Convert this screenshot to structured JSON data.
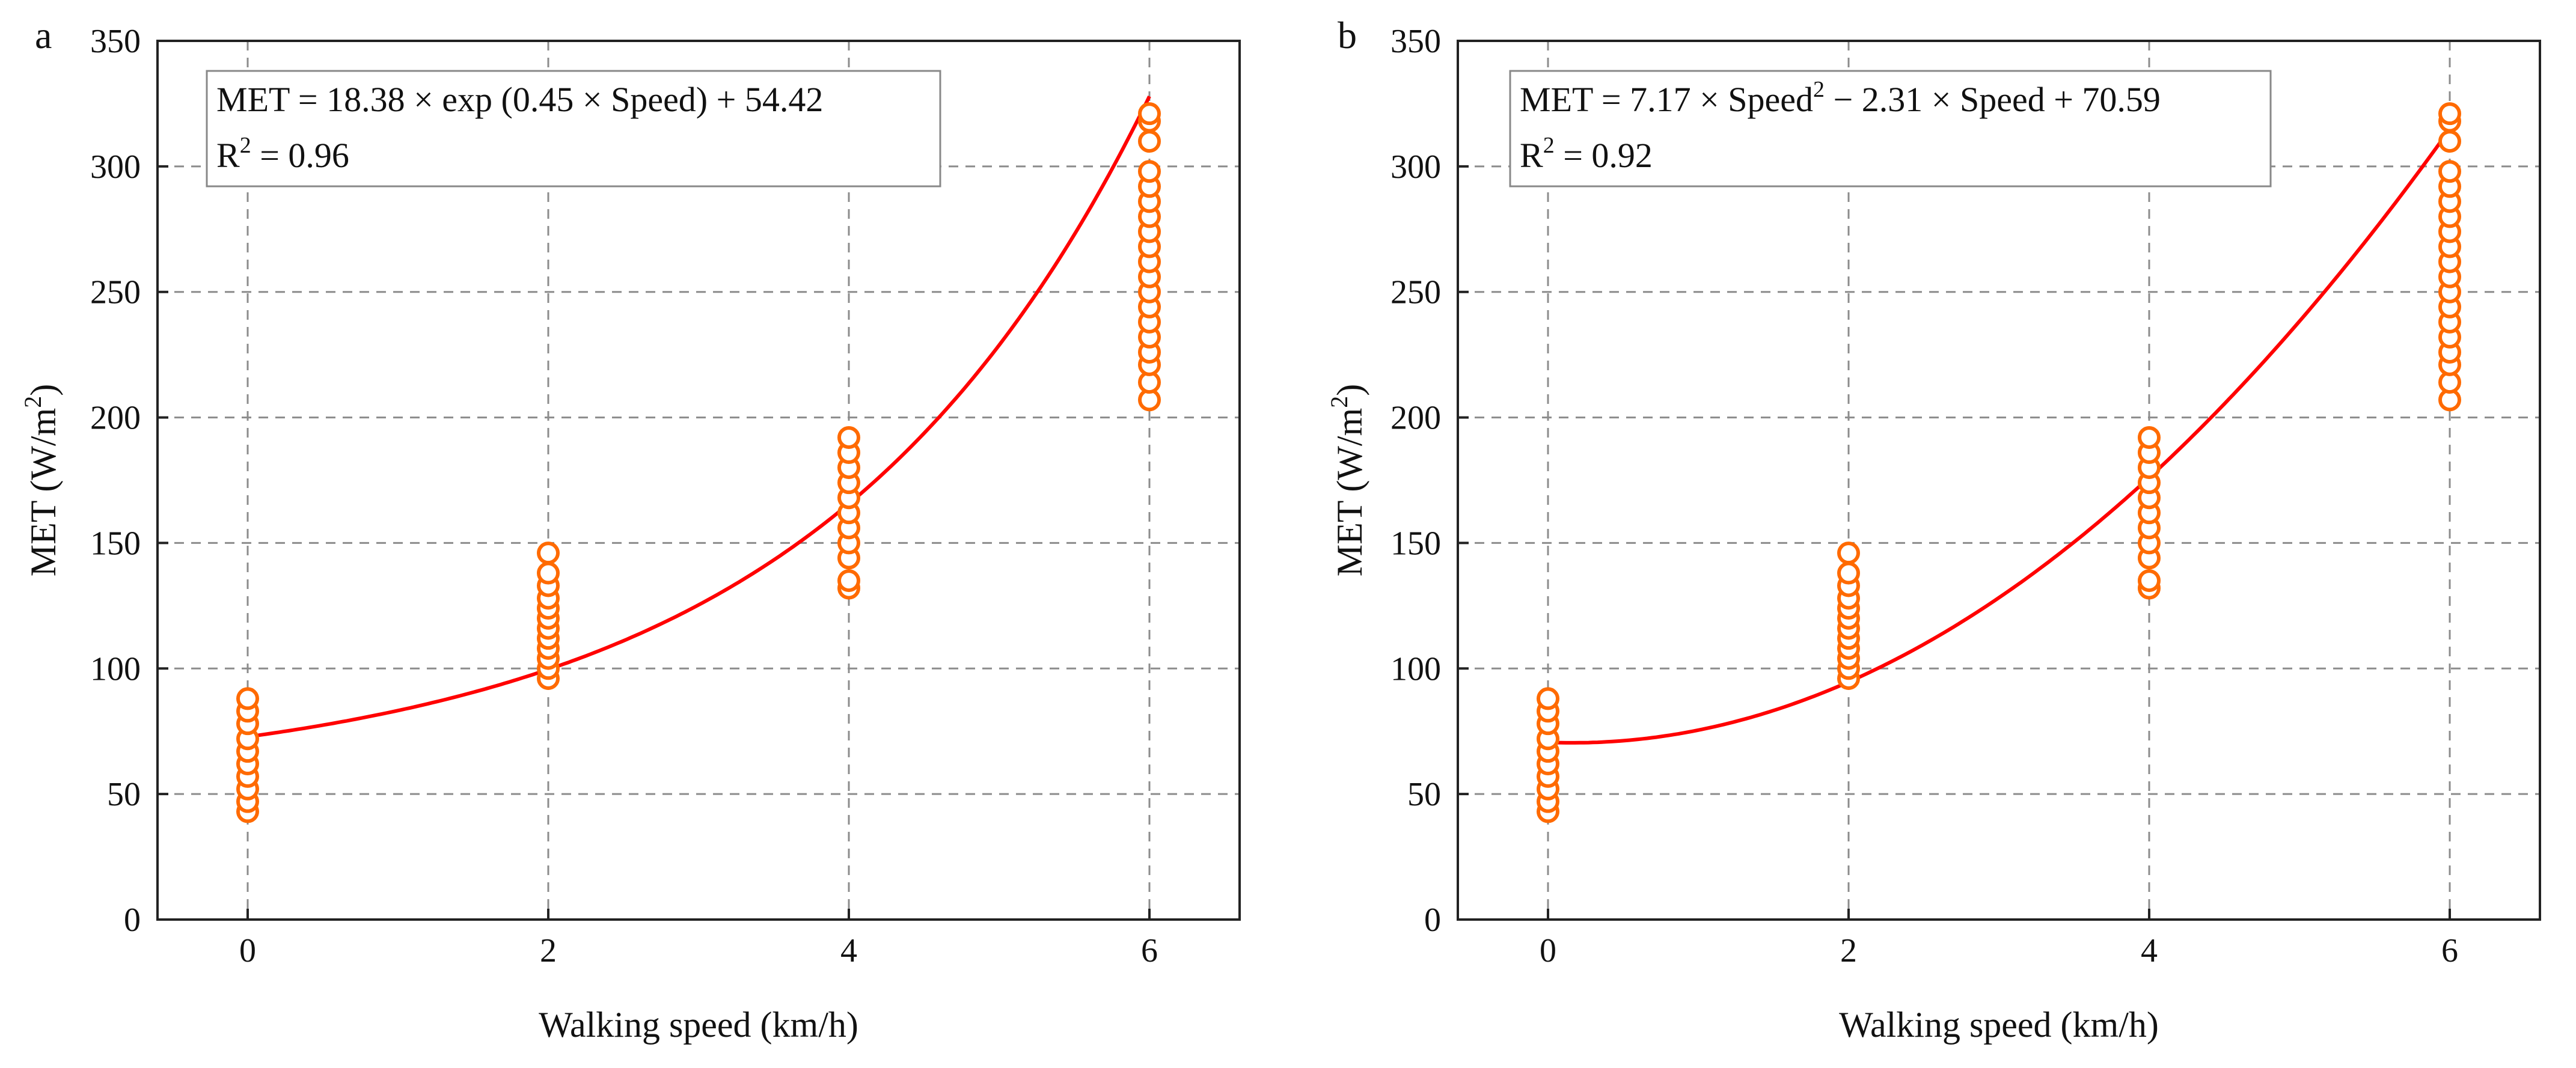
{
  "chart_data": [
    {
      "type": "scatter",
      "panel_label": "a",
      "xlabel": "Walking speed (km/h)",
      "ylabel": "MET (W/m",
      "ylabel_sup": "2",
      "ylabel_close": ")",
      "xlim": [
        -0.6,
        6.6
      ],
      "ylim": [
        0,
        350
      ],
      "xticks": [
        0,
        2,
        4,
        6
      ],
      "yticks": [
        0,
        50,
        100,
        150,
        200,
        250,
        300,
        350
      ],
      "grid": true,
      "marker_color": "#ff6a00",
      "fit_color": "#ff0000",
      "equation": "MET = 18.38 × exp (0.45 × Speed) + 54.42",
      "r2_prefix": "R",
      "r2_sup": "2",
      "r2_suffix": " = 0.96",
      "fit": {
        "model": "exp",
        "a": 18.38,
        "b": 0.45,
        "c": 54.42
      },
      "series": [
        {
          "name": "0 km/h",
          "x": 0,
          "values": [
            43,
            47,
            52,
            57,
            62,
            67,
            72,
            78,
            83,
            88
          ]
        },
        {
          "name": "2 km/h",
          "x": 2,
          "values": [
            96,
            100,
            104,
            108,
            112,
            116,
            120,
            124,
            128,
            133,
            138,
            146
          ]
        },
        {
          "name": "4 km/h",
          "x": 4,
          "values": [
            132,
            135,
            144,
            150,
            156,
            162,
            168,
            174,
            180,
            186,
            192
          ]
        },
        {
          "name": "6 km/h",
          "x": 6,
          "values": [
            207,
            214,
            221,
            226,
            232,
            238,
            244,
            250,
            256,
            262,
            268,
            274,
            280,
            286,
            292,
            298,
            310,
            318,
            321
          ]
        }
      ]
    },
    {
      "type": "scatter",
      "panel_label": "b",
      "xlabel": "Walking speed (km/h)",
      "ylabel": "MET (W/m",
      "ylabel_sup": "2",
      "ylabel_close": ")",
      "xlim": [
        -0.6,
        6.6
      ],
      "ylim": [
        0,
        350
      ],
      "xticks": [
        0,
        2,
        4,
        6
      ],
      "yticks": [
        0,
        50,
        100,
        150,
        200,
        250,
        300,
        350
      ],
      "grid": true,
      "marker_color": "#ff6a00",
      "fit_color": "#ff0000",
      "equation": "MET = 7.17 × Speed",
      "equation_sup": "2",
      "equation_rest": " − 2.31 × Speed + 70.59",
      "r2_prefix": "R",
      "r2_sup": "2",
      "r2_suffix": " = 0.92",
      "fit": {
        "model": "quadratic",
        "a": 7.17,
        "b": -2.31,
        "c": 70.59
      },
      "series": [
        {
          "name": "0 km/h",
          "x": 0,
          "values": [
            43,
            47,
            52,
            57,
            62,
            67,
            72,
            78,
            83,
            88
          ]
        },
        {
          "name": "2 km/h",
          "x": 2,
          "values": [
            96,
            100,
            104,
            108,
            112,
            116,
            120,
            124,
            128,
            133,
            138,
            146
          ]
        },
        {
          "name": "4 km/h",
          "x": 4,
          "values": [
            132,
            135,
            144,
            150,
            156,
            162,
            168,
            174,
            180,
            186,
            192
          ]
        },
        {
          "name": "6 km/h",
          "x": 6,
          "values": [
            207,
            214,
            221,
            226,
            232,
            238,
            244,
            250,
            256,
            262,
            268,
            274,
            280,
            286,
            292,
            298,
            310,
            318,
            321
          ]
        }
      ]
    }
  ]
}
